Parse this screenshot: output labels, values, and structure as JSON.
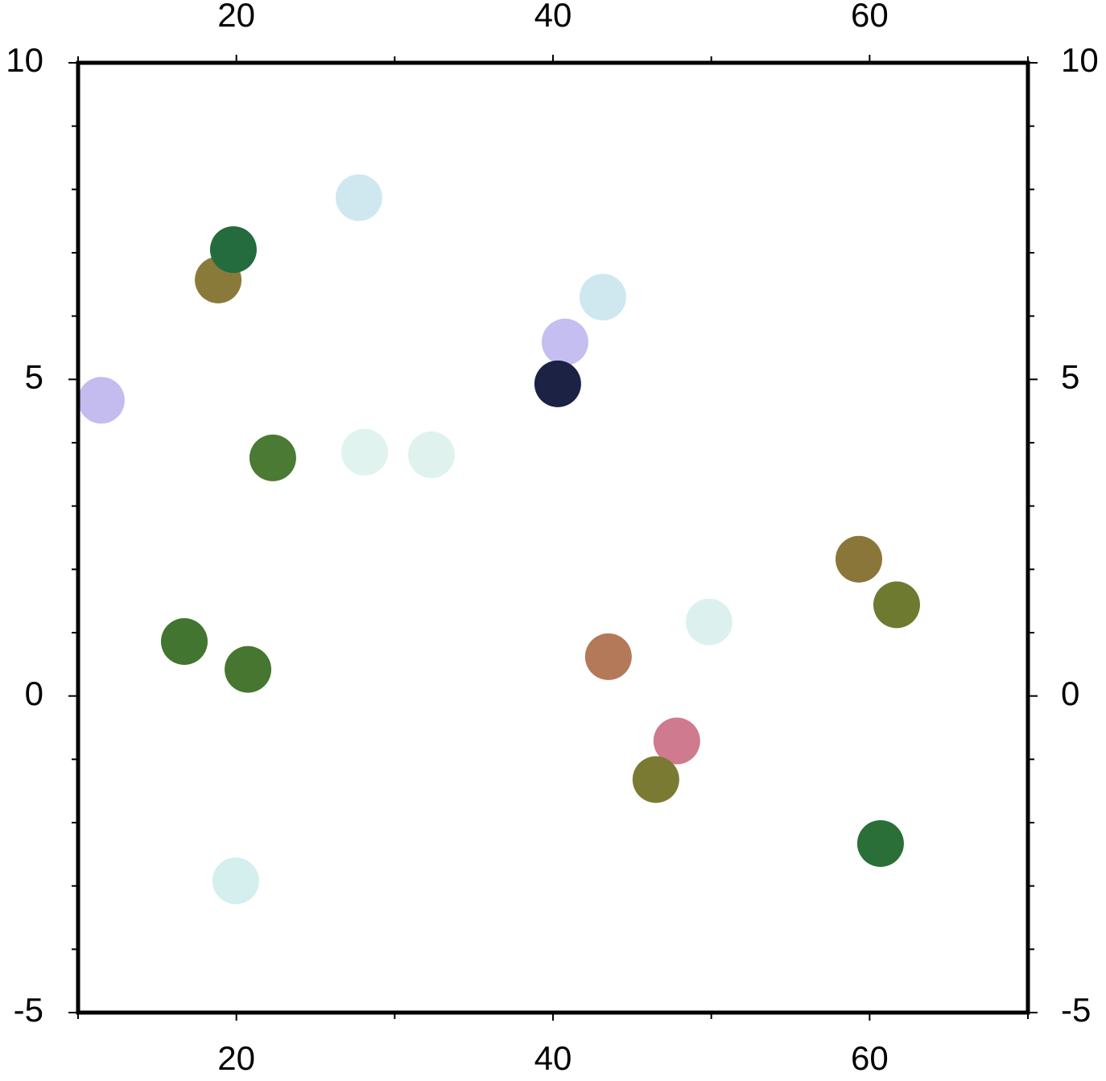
{
  "chart_data": {
    "type": "scatter",
    "x": [
      11.47,
      18.85,
      19.81,
      27.74,
      43.15,
      40.76,
      40.3,
      22.3,
      28.1,
      32.32,
      59.32,
      61.71,
      49.86,
      43.5,
      16.71,
      20.73,
      47.82,
      46.5,
      60.69,
      19.96
    ],
    "y": [
      4.67,
      6.57,
      7.05,
      7.87,
      6.3,
      5.59,
      4.93,
      3.76,
      3.85,
      3.81,
      2.16,
      1.44,
      1.17,
      0.62,
      0.86,
      0.42,
      -0.71,
      -1.32,
      -2.33,
      -2.92
    ],
    "colors": [
      "#c4bbef",
      "#8a7a3a",
      "#246b3e",
      "#cfe8ef",
      "#cfe8ef",
      "#c4bff0",
      "#1c2244",
      "#4a7a34",
      "#e0f3ee",
      "#dff2ee",
      "#8b763a",
      "#6e7a30",
      "#dcf1ee",
      "#b47959",
      "#42752f",
      "#46762f",
      "#cf7a8e",
      "#7b7a33",
      "#2b6f38",
      "#d5eeee"
    ],
    "xlim": [
      10,
      70
    ],
    "ylim": [
      -5,
      10
    ],
    "xticks": [
      20,
      40,
      60
    ],
    "yticks": [
      -5,
      0,
      5,
      10
    ],
    "xminorticks": [
      10,
      30,
      50,
      70
    ],
    "yminorticks": [
      -4,
      -3,
      -2,
      -1,
      1,
      2,
      3,
      4,
      6,
      7,
      8,
      9
    ]
  }
}
